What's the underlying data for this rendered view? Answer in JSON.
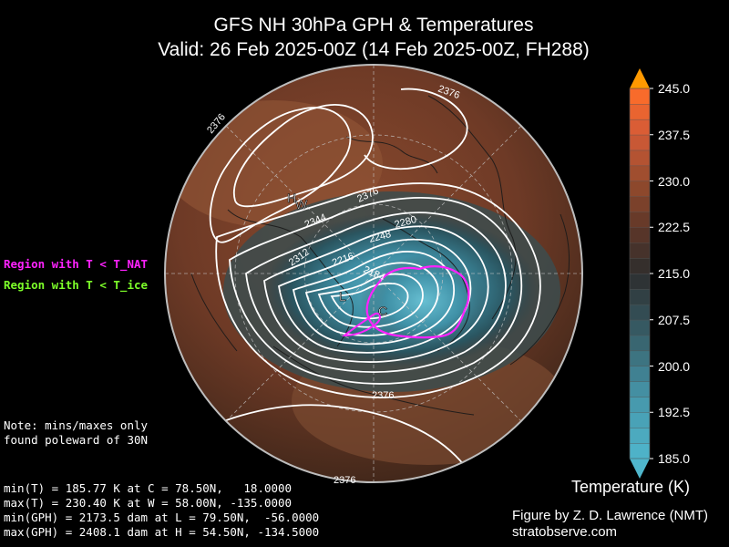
{
  "title": {
    "line1": "GFS NH 30hPa GPH & Temperatures",
    "line2": "Valid: 26 Feb 2025-00Z  (14 Feb 2025-00Z, FH288)"
  },
  "legend": {
    "nat": "Region with T < T_NAT",
    "ice": "Region with T < T_ice",
    "nat_color": "#ff22ff",
    "ice_color": "#7dff2a"
  },
  "note": {
    "line1": "Note: mins/maxes only",
    "line2": "found poleward of 30N"
  },
  "stats": [
    "min(T) = 185.77 K at C = 78.50N,   18.0000",
    "max(T) = 230.40 K at W = 58.00N, -135.0000",
    "min(GPH) = 2173.5 dam at L = 79.50N,  -56.0000",
    "max(GPH) = 2408.1 dam at H = 54.50N, -134.5000"
  ],
  "credit": {
    "line1": "Figure by Z. D. Lawrence (NMT)",
    "line2": "stratobserve.com"
  },
  "colorbar": {
    "title": "Temperature (K)",
    "min": 185.0,
    "max": 245.0,
    "step": 2.5,
    "ticks": [
      "245.0",
      "237.5",
      "230.0",
      "222.5",
      "215.0",
      "207.5",
      "200.0",
      "192.5",
      "185.0"
    ],
    "low_color": "#4fb6cc",
    "high_color": "#ff9900"
  },
  "map": {
    "markers": {
      "H": "H",
      "W": "W",
      "L": "L",
      "C": "C"
    },
    "contour_labels": [
      "2376",
      "2376",
      "2376",
      "2344",
      "2312",
      "2280",
      "2248",
      "2216",
      "2184",
      "2376",
      "2376"
    ]
  }
}
